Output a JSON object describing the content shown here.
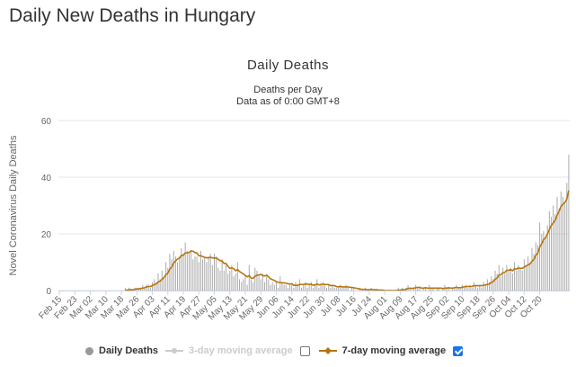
{
  "page": {
    "title": "Daily New Deaths in Hungary"
  },
  "colors": {
    "bars": "#aaaaaa",
    "ma7": "#b5760e",
    "ma3": "#cccccc",
    "grid": "#e6e6e6",
    "axis": "#ccd6eb"
  },
  "chart_data": {
    "type": "bar",
    "title": "Daily Deaths",
    "subtitle": [
      "Deaths per Day",
      "Data as of 0:00 GMT+8"
    ],
    "ylabel": "Novel Coronavirus Daily Deaths",
    "xlabel": "",
    "ylim": [
      0,
      60
    ],
    "yticks": [
      0,
      20,
      40,
      60
    ],
    "start_date": "Feb 15",
    "x_tick_labels": [
      "Feb 15",
      "Feb 23",
      "Mar 02",
      "Mar 10",
      "Mar 18",
      "Mar 26",
      "Apr 03",
      "Apr 11",
      "Apr 19",
      "Apr 27",
      "May 05",
      "May 13",
      "May 21",
      "May 29",
      "Jun 06",
      "Jun 14",
      "Jun 22",
      "Jun 30",
      "Jul 08",
      "Jul 16",
      "Jul 24",
      "Aug 01",
      "Aug 09",
      "Aug 17",
      "Aug 25",
      "Sep 02",
      "Sep 10",
      "Sep 18",
      "Sep 26",
      "Oct 04",
      "Oct 12",
      "Oct 20"
    ],
    "series": [
      {
        "name": "Daily Deaths",
        "kind": "bar",
        "values": [
          0,
          0,
          0,
          0,
          0,
          0,
          0,
          0,
          0,
          0,
          0,
          0,
          0,
          0,
          0,
          0,
          0,
          0,
          0,
          0,
          0,
          0,
          0,
          0,
          0,
          0,
          0,
          0,
          0,
          0,
          0,
          0,
          0,
          0,
          1,
          0,
          1,
          0,
          0,
          1,
          1,
          1,
          1,
          2,
          1,
          2,
          2,
          1,
          3,
          4,
          3,
          6,
          4,
          7,
          5,
          10,
          8,
          13,
          11,
          14,
          12,
          10,
          12,
          15,
          13,
          17,
          14,
          13,
          14,
          11,
          12,
          12,
          10,
          14,
          11,
          12,
          10,
          12,
          13,
          9,
          13,
          12,
          8,
          7,
          11,
          7,
          9,
          6,
          7,
          9,
          5,
          6,
          10,
          4,
          3,
          4,
          5,
          2,
          9,
          4,
          3,
          8,
          7,
          5,
          4,
          6,
          3,
          5,
          4,
          2,
          3,
          2,
          3,
          1,
          5,
          3,
          2,
          2,
          1,
          2,
          2,
          1,
          3,
          2,
          4,
          1,
          2,
          3,
          1,
          2,
          3,
          1,
          2,
          4,
          1,
          2,
          3,
          2,
          1,
          2,
          1,
          2,
          1,
          1,
          1,
          2,
          1,
          1,
          2,
          1,
          0,
          1,
          1,
          0,
          0,
          1,
          0,
          0,
          1,
          0,
          0,
          1,
          0,
          0,
          0,
          0,
          0,
          0,
          0,
          0,
          0,
          0,
          0,
          0,
          0,
          1,
          0,
          1,
          0,
          1,
          2,
          1,
          0,
          1,
          2,
          1,
          1,
          0,
          1,
          1,
          0,
          2,
          1,
          1,
          0,
          1,
          1,
          0,
          1,
          2,
          1,
          1,
          0,
          1,
          1,
          2,
          1,
          1,
          2,
          1,
          2,
          1,
          2,
          1,
          3,
          2,
          1,
          2,
          1,
          3,
          2,
          4,
          3,
          5,
          4,
          7,
          6,
          9,
          5,
          8,
          6,
          9,
          7,
          8,
          6,
          10,
          7,
          9,
          8,
          7,
          11,
          9,
          12,
          10,
          15,
          13,
          17,
          16,
          24,
          20,
          21,
          19,
          23,
          28,
          26,
          30,
          27,
          33,
          29,
          35,
          33,
          31,
          38,
          48
        ]
      },
      {
        "name": "3-day moving average",
        "kind": "line",
        "visible": false
      },
      {
        "name": "7-day moving average",
        "kind": "line",
        "visible": true
      }
    ]
  },
  "legend": {
    "items": [
      {
        "label": "Daily Deaths"
      },
      {
        "label": "3-day moving average"
      },
      {
        "label": "7-day moving average"
      }
    ]
  }
}
